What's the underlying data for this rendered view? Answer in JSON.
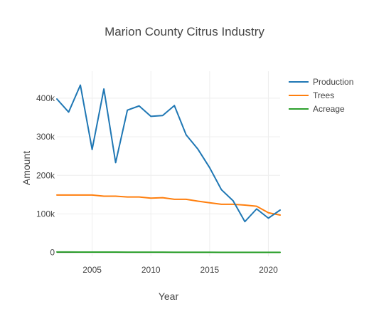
{
  "chart_data": {
    "type": "line",
    "title": "Marion County Citrus Industry",
    "xlabel": "Year",
    "ylabel": "Amount",
    "xlim": [
      2002,
      2021
    ],
    "ylim": [
      -10000,
      470000
    ],
    "grid": true,
    "legend_position": "top-right",
    "x_ticks": [
      2005,
      2010,
      2015,
      2020
    ],
    "x_tick_labels": [
      "2005",
      "2010",
      "2015",
      "2020"
    ],
    "y_ticks": [
      0,
      100000,
      200000,
      300000,
      400000
    ],
    "y_tick_labels": [
      "0",
      "100k",
      "200k",
      "300k",
      "400k"
    ],
    "x": [
      2002,
      2003,
      2004,
      2005,
      2006,
      2007,
      2008,
      2009,
      2010,
      2011,
      2012,
      2013,
      2014,
      2015,
      2016,
      2017,
      2018,
      2019,
      2020,
      2021
    ],
    "series": [
      {
        "name": "Production",
        "color": "#1f77b4",
        "values": [
          398000,
          364000,
          434000,
          267000,
          424000,
          233000,
          369000,
          380000,
          353000,
          355000,
          381000,
          305000,
          268000,
          220000,
          163000,
          134000,
          80000,
          113000,
          89000,
          110000
        ]
      },
      {
        "name": "Trees",
        "color": "#ff7f0e",
        "values": [
          149000,
          149000,
          149000,
          149000,
          146000,
          146000,
          144000,
          144000,
          141000,
          142000,
          138000,
          138000,
          133000,
          129000,
          125000,
          125000,
          123000,
          120000,
          103000,
          97000
        ]
      },
      {
        "name": "Acreage",
        "color": "#2ca02c",
        "values": [
          1200,
          1200,
          1100,
          1100,
          1000,
          1000,
          900,
          900,
          800,
          800,
          700,
          600,
          500,
          500,
          400,
          400,
          300,
          300,
          300,
          300
        ]
      }
    ]
  }
}
